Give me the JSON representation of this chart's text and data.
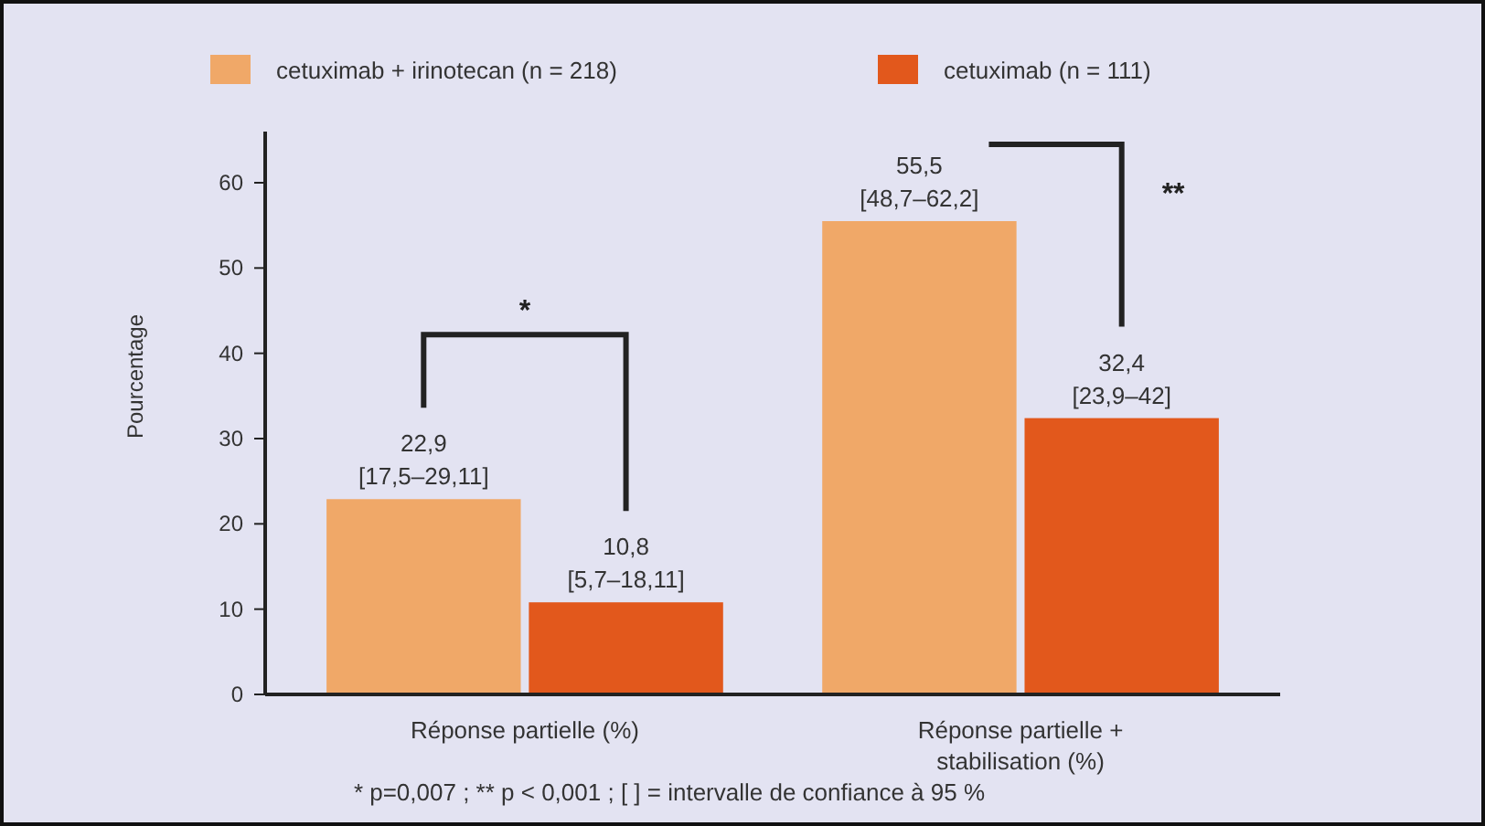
{
  "chart_data": {
    "type": "bar",
    "ylabel": "Pourcentage",
    "categories": [
      "Réponse partielle (%)",
      "Réponse partielle + stabilisation (%)"
    ],
    "series": [
      {
        "name": "cetuximab + irinotecan (n = 218)",
        "color": "#f0a868",
        "values": [
          22.9,
          55.5
        ],
        "value_labels": [
          "22,9\n[17,5–29,11]",
          "55,5\n[48,7–62,2]"
        ]
      },
      {
        "name": "cetuximab (n = 111)",
        "color": "#e2581c",
        "values": [
          10.8,
          32.4
        ],
        "value_labels": [
          "10,8\n[5,7–18,11]",
          "32,4\n[23,9–42]"
        ]
      }
    ],
    "ylim": [
      0,
      66
    ],
    "yticks": [
      0,
      10,
      20,
      30,
      40,
      50,
      60
    ],
    "legend": "top",
    "grid": false,
    "annotations": [
      "*",
      "**",
      "* p=0,007 ; ** p < 0,001 ; [ ] = intervalle de confiance à 95 %"
    ]
  }
}
